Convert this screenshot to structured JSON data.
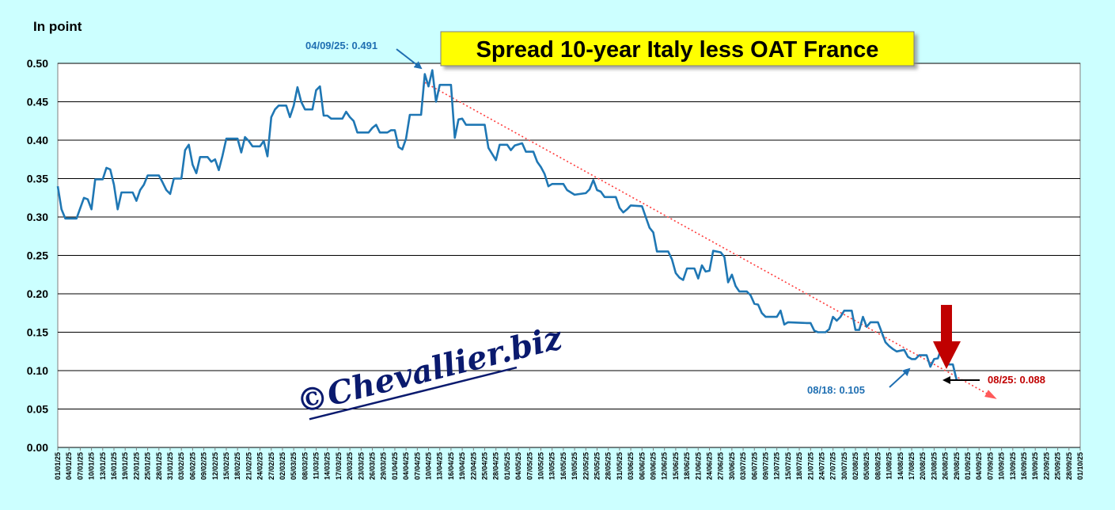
{
  "chart_data": {
    "type": "line",
    "title": "Spread 10-year Italy less OAT France",
    "ylabel": "In point",
    "ylim": [
      0,
      0.5
    ],
    "yticks": [
      "0.00",
      "0.05",
      "0.10",
      "0.15",
      "0.20",
      "0.25",
      "0.30",
      "0.35",
      "0.40",
      "0.45",
      "0.50"
    ],
    "xticks": [
      "01/01/25",
      "04/01/25",
      "07/01/25",
      "10/01/25",
      "13/01/25",
      "16/01/25",
      "19/01/25",
      "22/01/25",
      "25/01/25",
      "28/01/25",
      "31/01/25",
      "03/02/25",
      "06/02/25",
      "09/02/25",
      "12/02/25",
      "15/02/25",
      "18/02/25",
      "21/02/25",
      "24/02/25",
      "27/02/25",
      "02/03/25",
      "05/03/25",
      "08/03/25",
      "11/03/25",
      "14/03/25",
      "17/03/25",
      "20/03/25",
      "23/03/25",
      "26/03/25",
      "29/03/25",
      "01/04/25",
      "04/04/25",
      "07/04/25",
      "10/04/25",
      "13/04/25",
      "16/04/25",
      "19/04/25",
      "22/04/25",
      "25/04/25",
      "28/04/25",
      "01/05/25",
      "04/05/25",
      "07/05/25",
      "10/05/25",
      "13/05/25",
      "16/05/25",
      "19/05/25",
      "22/05/25",
      "25/05/25",
      "28/05/25",
      "31/05/25",
      "03/06/25",
      "06/06/25",
      "09/06/25",
      "12/06/25",
      "15/06/25",
      "18/06/25",
      "21/06/25",
      "24/06/25",
      "27/06/25",
      "30/06/25",
      "03/07/25",
      "06/07/25",
      "09/07/25",
      "12/07/25",
      "15/07/25",
      "18/07/25",
      "21/07/25",
      "24/07/25",
      "27/07/25",
      "30/07/25",
      "02/08/25",
      "05/08/25",
      "08/08/25",
      "11/08/25",
      "14/08/25",
      "17/08/25",
      "20/08/25",
      "23/08/25",
      "26/08/25",
      "29/08/25",
      "01/09/25",
      "04/09/25",
      "07/09/25",
      "10/09/25",
      "13/09/25",
      "16/09/25",
      "19/09/25",
      "22/09/25",
      "25/09/25",
      "28/09/25",
      "01/10/25"
    ],
    "x_day_range": [
      0,
      273
    ],
    "series": [
      {
        "name": "Spread 10-year Italy less OAT France",
        "color": "#1f77b4",
        "points": [
          [
            0,
            0.34
          ],
          [
            1,
            0.31
          ],
          [
            2,
            0.298
          ],
          [
            3,
            0.298
          ],
          [
            5,
            0.298
          ],
          [
            7,
            0.325
          ],
          [
            8,
            0.323
          ],
          [
            9,
            0.31
          ],
          [
            10,
            0.349
          ],
          [
            12,
            0.349
          ],
          [
            13,
            0.364
          ],
          [
            14,
            0.362
          ],
          [
            15,
            0.342
          ],
          [
            16,
            0.31
          ],
          [
            17,
            0.332
          ],
          [
            19,
            0.332
          ],
          [
            20,
            0.332
          ],
          [
            21,
            0.321
          ],
          [
            22,
            0.335
          ],
          [
            23,
            0.342
          ],
          [
            24,
            0.354
          ],
          [
            27,
            0.354
          ],
          [
            28,
            0.345
          ],
          [
            29,
            0.335
          ],
          [
            30,
            0.33
          ],
          [
            31,
            0.35
          ],
          [
            33,
            0.35
          ],
          [
            34,
            0.387
          ],
          [
            35,
            0.394
          ],
          [
            36,
            0.368
          ],
          [
            37,
            0.357
          ],
          [
            38,
            0.378
          ],
          [
            40,
            0.378
          ],
          [
            41,
            0.372
          ],
          [
            42,
            0.375
          ],
          [
            43,
            0.361
          ],
          [
            44,
            0.38
          ],
          [
            45,
            0.402
          ],
          [
            48,
            0.402
          ],
          [
            49,
            0.384
          ],
          [
            50,
            0.404
          ],
          [
            51,
            0.399
          ],
          [
            52,
            0.392
          ],
          [
            54,
            0.392
          ],
          [
            55,
            0.399
          ],
          [
            56,
            0.379
          ],
          [
            57,
            0.43
          ],
          [
            58,
            0.44
          ],
          [
            59,
            0.445
          ],
          [
            61,
            0.445
          ],
          [
            62,
            0.43
          ],
          [
            63,
            0.445
          ],
          [
            64,
            0.469
          ],
          [
            65,
            0.45
          ],
          [
            66,
            0.44
          ],
          [
            68,
            0.44
          ],
          [
            69,
            0.465
          ],
          [
            70,
            0.47
          ],
          [
            71,
            0.432
          ],
          [
            72,
            0.432
          ],
          [
            73,
            0.428
          ],
          [
            76,
            0.428
          ],
          [
            77,
            0.437
          ],
          [
            78,
            0.43
          ],
          [
            79,
            0.425
          ],
          [
            80,
            0.41
          ],
          [
            83,
            0.41
          ],
          [
            84,
            0.416
          ],
          [
            85,
            0.42
          ],
          [
            86,
            0.41
          ],
          [
            88,
            0.41
          ],
          [
            89,
            0.413
          ],
          [
            90,
            0.413
          ],
          [
            91,
            0.391
          ],
          [
            92,
            0.388
          ],
          [
            93,
            0.402
          ],
          [
            94,
            0.433
          ],
          [
            97,
            0.433
          ],
          [
            98,
            0.486
          ],
          [
            99,
            0.47
          ],
          [
            100,
            0.491
          ],
          [
            101,
            0.45
          ],
          [
            102,
            0.472
          ],
          [
            105,
            0.472
          ],
          [
            106,
            0.403
          ],
          [
            107,
            0.427
          ],
          [
            108,
            0.428
          ],
          [
            109,
            0.42
          ],
          [
            114,
            0.42
          ],
          [
            115,
            0.39
          ],
          [
            117,
            0.374
          ],
          [
            118,
            0.394
          ],
          [
            120,
            0.394
          ],
          [
            121,
            0.387
          ],
          [
            122,
            0.393
          ],
          [
            124,
            0.396
          ],
          [
            125,
            0.385
          ],
          [
            127,
            0.385
          ],
          [
            128,
            0.372
          ],
          [
            129,
            0.365
          ],
          [
            130,
            0.356
          ],
          [
            131,
            0.34
          ],
          [
            132,
            0.343
          ],
          [
            135,
            0.343
          ],
          [
            136,
            0.335
          ],
          [
            137,
            0.332
          ],
          [
            138,
            0.329
          ],
          [
            141,
            0.331
          ],
          [
            142,
            0.336
          ],
          [
            143,
            0.348
          ],
          [
            144,
            0.335
          ],
          [
            145,
            0.333
          ],
          [
            146,
            0.326
          ],
          [
            149,
            0.326
          ],
          [
            150,
            0.312
          ],
          [
            151,
            0.306
          ],
          [
            152,
            0.31
          ],
          [
            153,
            0.315
          ],
          [
            156,
            0.314
          ],
          [
            157,
            0.3
          ],
          [
            158,
            0.286
          ],
          [
            159,
            0.28
          ],
          [
            160,
            0.255
          ],
          [
            163,
            0.255
          ],
          [
            164,
            0.245
          ],
          [
            165,
            0.227
          ],
          [
            166,
            0.221
          ],
          [
            167,
            0.218
          ],
          [
            168,
            0.233
          ],
          [
            170,
            0.233
          ],
          [
            171,
            0.22
          ],
          [
            172,
            0.237
          ],
          [
            173,
            0.229
          ],
          [
            174,
            0.23
          ],
          [
            175,
            0.256
          ],
          [
            177,
            0.254
          ],
          [
            178,
            0.248
          ],
          [
            179,
            0.215
          ],
          [
            180,
            0.225
          ],
          [
            181,
            0.21
          ],
          [
            182,
            0.203
          ],
          [
            184,
            0.203
          ],
          [
            185,
            0.198
          ],
          [
            186,
            0.187
          ],
          [
            187,
            0.186
          ],
          [
            188,
            0.175
          ],
          [
            189,
            0.17
          ],
          [
            192,
            0.17
          ],
          [
            193,
            0.178
          ],
          [
            194,
            0.16
          ],
          [
            195,
            0.163
          ],
          [
            200,
            0.162
          ],
          [
            201,
            0.162
          ],
          [
            202,
            0.152
          ],
          [
            203,
            0.15
          ],
          [
            205,
            0.15
          ],
          [
            206,
            0.154
          ],
          [
            207,
            0.17
          ],
          [
            208,
            0.165
          ],
          [
            209,
            0.17
          ],
          [
            210,
            0.178
          ],
          [
            212,
            0.178
          ],
          [
            213,
            0.153
          ],
          [
            214,
            0.153
          ],
          [
            215,
            0.17
          ],
          [
            216,
            0.157
          ],
          [
            217,
            0.163
          ],
          [
            219,
            0.163
          ],
          [
            220,
            0.15
          ],
          [
            221,
            0.137
          ],
          [
            222,
            0.132
          ],
          [
            223,
            0.128
          ],
          [
            224,
            0.125
          ],
          [
            226,
            0.127
          ],
          [
            227,
            0.118
          ],
          [
            228,
            0.115
          ],
          [
            229,
            0.115
          ],
          [
            230,
            0.12
          ],
          [
            232,
            0.12
          ],
          [
            233,
            0.105
          ],
          [
            234,
            0.115
          ],
          [
            235,
            0.116
          ],
          [
            236,
            0.13
          ],
          [
            237,
            0.108
          ],
          [
            239,
            0.108
          ],
          [
            240,
            0.088
          ]
        ]
      }
    ],
    "trendline": {
      "style": "dotted",
      "color": "#ff3b3b",
      "from": [
        98,
        0.475
      ],
      "to": [
        250,
        0.065
      ]
    },
    "annotations": [
      {
        "text": "04/09/25: 0.491",
        "color": "#1f6fb2",
        "day": 100,
        "value": 0.491
      },
      {
        "text": "08/18: 0.105",
        "color": "#1f6fb2",
        "day": 233,
        "value": 0.105
      },
      {
        "text": "08/25: 0.088",
        "color": "#c00000",
        "day": 240,
        "value": 0.088
      }
    ],
    "watermark": "©Chevallier.biz",
    "grid": true
  }
}
